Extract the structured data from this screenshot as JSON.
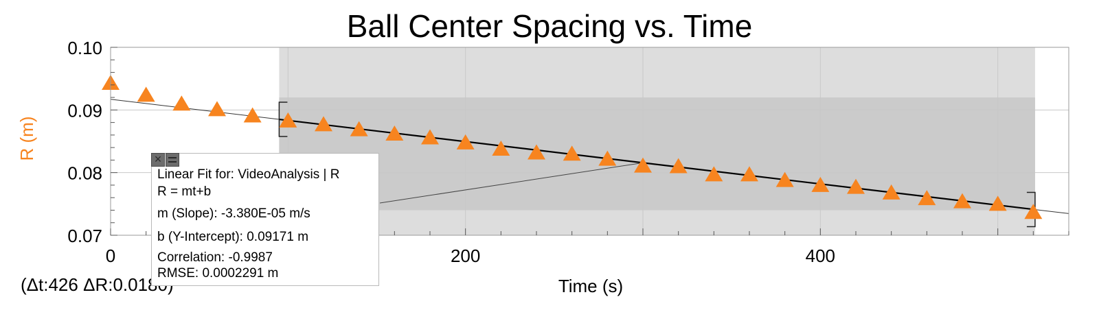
{
  "chart_data": {
    "type": "scatter",
    "title": "Ball Center Spacing vs. Time",
    "xlabel": "Time (s)",
    "ylabel": "R (m)",
    "xlim": [
      0,
      540
    ],
    "ylim": [
      0.07,
      0.1
    ],
    "x_ticks": [
      {
        "value": 0,
        "label": "0"
      },
      {
        "value": 200,
        "label": "200"
      },
      {
        "value": 400,
        "label": "400"
      }
    ],
    "y_ticks": [
      {
        "value": 0.1,
        "label": "0.10"
      },
      {
        "value": 0.09,
        "label": "0.09"
      },
      {
        "value": 0.08,
        "label": "0.08"
      },
      {
        "value": 0.07,
        "label": "0.07"
      }
    ],
    "grid": true,
    "marker": "triangle",
    "marker_color": "#f7841f",
    "series": [
      {
        "x": [
          0,
          20,
          40,
          60,
          80,
          100,
          120,
          140,
          160,
          180,
          200,
          220,
          240,
          260,
          280,
          300,
          320,
          340,
          360,
          380,
          400,
          420,
          440,
          460,
          480,
          500,
          520
        ],
        "y": [
          0.0943,
          0.0924,
          0.091,
          0.0901,
          0.0891,
          0.0883,
          0.0877,
          0.0869,
          0.0862,
          0.0856,
          0.0848,
          0.0838,
          0.0832,
          0.083,
          0.0822,
          0.0811,
          0.081,
          0.0797,
          0.0797,
          0.0788,
          0.078,
          0.0777,
          0.0768,
          0.0759,
          0.0754,
          0.075,
          0.0737
        ]
      }
    ],
    "selection": {
      "x": [
        95,
        521
      ]
    },
    "fit_band": {
      "y": [
        0.074,
        0.092
      ]
    },
    "fit": {
      "type": "linear",
      "slope": -3.38e-05,
      "intercept": 0.09171,
      "x_range": [
        95,
        521
      ]
    },
    "delta_readout": "(Δt:426 ΔR:0.0180)",
    "fit_info": {
      "title": "Linear Fit for: VideoAnalysis | R",
      "equation": "R = mt+b",
      "slope": "m (Slope): -3.380E-05 m/s",
      "intercept": "b (Y-Intercept): 0.09171 m",
      "correlation": "Correlation: -0.9987",
      "rmse": "RMSE: 0.0002291 m"
    }
  }
}
